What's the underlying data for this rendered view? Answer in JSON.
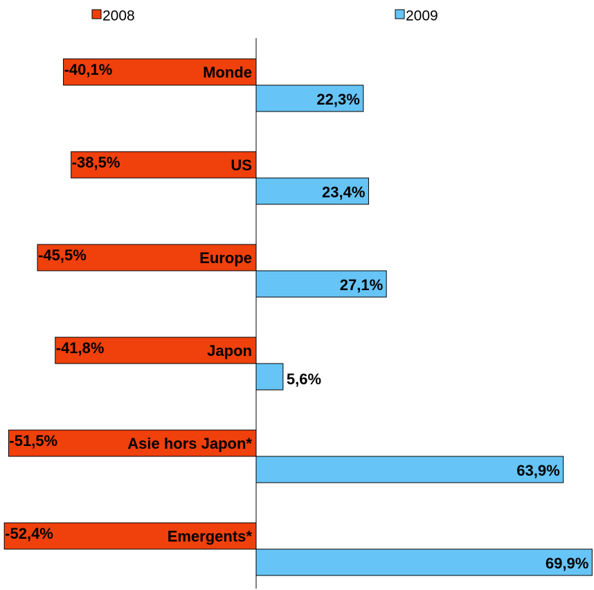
{
  "chart_data": {
    "type": "bar",
    "orientation": "horizontal",
    "categories": [
      "Monde",
      "US",
      "Europe",
      "Japon",
      "Asie hors Japon*",
      "Emergents*"
    ],
    "series": [
      {
        "name": "2008",
        "color": "#f0400c",
        "values": [
          -40.1,
          -38.5,
          -45.5,
          -41.8,
          -51.5,
          -52.4
        ],
        "value_labels": [
          "-40,1%",
          "-38,5%",
          "-45,5%",
          "-41,8%",
          "-51,5%",
          "-52,4%"
        ]
      },
      {
        "name": "2009",
        "color": "#66c4f7",
        "values": [
          22.3,
          23.4,
          27.1,
          5.6,
          63.9,
          69.9
        ],
        "value_labels": [
          "22,3%",
          "23,4%",
          "27,1%",
          "5,6%",
          "63,9%",
          "69,9%"
        ]
      }
    ],
    "xlim": [
      -53,
      70
    ]
  }
}
